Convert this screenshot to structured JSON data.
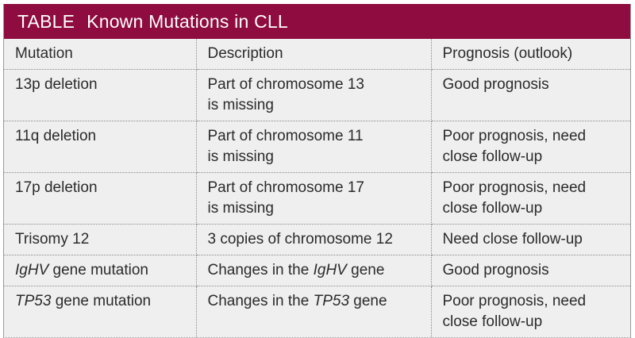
{
  "colors": {
    "title_bg": "#8e0c3f",
    "title_text": "#ffffff",
    "cell_bg": "#efefef",
    "body_text": "#2b2b2b",
    "border_dotted": "#8a8a8a",
    "border_outer": "#9b9b9b"
  },
  "title": {
    "prefix": "TABLE",
    "text": "Known Mutations in CLL"
  },
  "table": {
    "columns": [
      {
        "label": "Mutation"
      },
      {
        "label": "Description"
      },
      {
        "label": "Prognosis (outlook)"
      }
    ],
    "rows": [
      {
        "mutation": [
          {
            "text": "13p deletion",
            "italic": false
          }
        ],
        "description": [
          {
            "text": "Part of chromosome 13\nis missing",
            "italic": false
          }
        ],
        "prognosis": [
          {
            "text": "Good prognosis",
            "italic": false
          }
        ]
      },
      {
        "mutation": [
          {
            "text": "11q deletion",
            "italic": false
          }
        ],
        "description": [
          {
            "text": "Part of chromosome 11\nis missing",
            "italic": false
          }
        ],
        "prognosis": [
          {
            "text": "Poor prognosis, need\nclose follow-up",
            "italic": false
          }
        ]
      },
      {
        "mutation": [
          {
            "text": "17p deletion",
            "italic": false
          }
        ],
        "description": [
          {
            "text": "Part of chromosome 17\nis missing",
            "italic": false
          }
        ],
        "prognosis": [
          {
            "text": "Poor prognosis, need\nclose follow-up",
            "italic": false
          }
        ]
      },
      {
        "mutation": [
          {
            "text": "Trisomy 12",
            "italic": false
          }
        ],
        "description": [
          {
            "text": "3 copies of chromosome 12",
            "italic": false
          }
        ],
        "prognosis": [
          {
            "text": "Need close follow-up",
            "italic": false
          }
        ]
      },
      {
        "mutation": [
          {
            "text": "IgHV",
            "italic": true
          },
          {
            "text": " gene mutation",
            "italic": false
          }
        ],
        "description": [
          {
            "text": "Changes in the ",
            "italic": false
          },
          {
            "text": "IgHV",
            "italic": true
          },
          {
            "text": " gene",
            "italic": false
          }
        ],
        "prognosis": [
          {
            "text": "Good prognosis",
            "italic": false
          }
        ]
      },
      {
        "mutation": [
          {
            "text": "TP53",
            "italic": true
          },
          {
            "text": " gene mutation",
            "italic": false
          }
        ],
        "description": [
          {
            "text": "Changes in the ",
            "italic": false
          },
          {
            "text": "TP53",
            "italic": true
          },
          {
            "text": " gene",
            "italic": false
          }
        ],
        "prognosis": [
          {
            "text": "Poor prognosis, need\nclose follow-up",
            "italic": false
          }
        ]
      }
    ]
  },
  "chart_data": {
    "type": "table",
    "title": "TABLE  Known Mutations in CLL",
    "columns": [
      "Mutation",
      "Description",
      "Prognosis (outlook)"
    ],
    "rows": [
      [
        "13p deletion",
        "Part of chromosome 13 is missing",
        "Good prognosis"
      ],
      [
        "11q deletion",
        "Part of chromosome 11 is missing",
        "Poor prognosis, need close follow-up"
      ],
      [
        "17p deletion",
        "Part of chromosome 17 is missing",
        "Poor prognosis, need close follow-up"
      ],
      [
        "Trisomy 12",
        "3 copies of chromosome 12",
        "Need close follow-up"
      ],
      [
        "IgHV gene mutation",
        "Changes in the IgHV gene",
        "Good prognosis"
      ],
      [
        "TP53 gene mutation",
        "Changes in the TP53 gene",
        "Poor prognosis, need close follow-up"
      ]
    ]
  }
}
